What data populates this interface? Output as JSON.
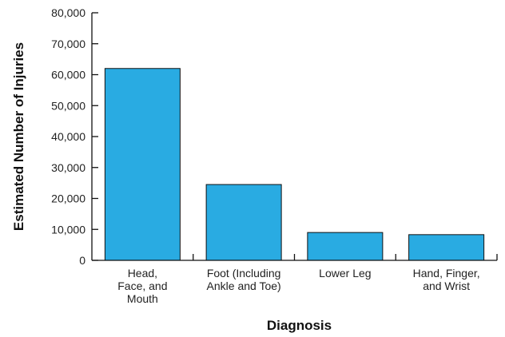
{
  "chart_data": {
    "type": "bar",
    "title": "",
    "xlabel": "Diagnosis",
    "ylabel": "Estimated Number of Injuries",
    "ylim": [
      0,
      80000
    ],
    "yticks": [
      "0",
      "10,000",
      "20,000",
      "30,000",
      "40,000",
      "50,000",
      "60,000",
      "70,000",
      "80,000"
    ],
    "ytick_values": [
      0,
      10000,
      20000,
      30000,
      40000,
      50000,
      60000,
      70000,
      80000
    ],
    "categories": [
      [
        "Head,",
        "Face, and",
        "Mouth"
      ],
      [
        "Foot (Including",
        "Ankle and Toe)"
      ],
      [
        "Lower Leg"
      ],
      [
        "Hand, Finger,",
        "and Wrist"
      ]
    ],
    "values": [
      62000,
      24500,
      9000,
      8300
    ],
    "grid": false,
    "bar_color": "#29abe2"
  }
}
